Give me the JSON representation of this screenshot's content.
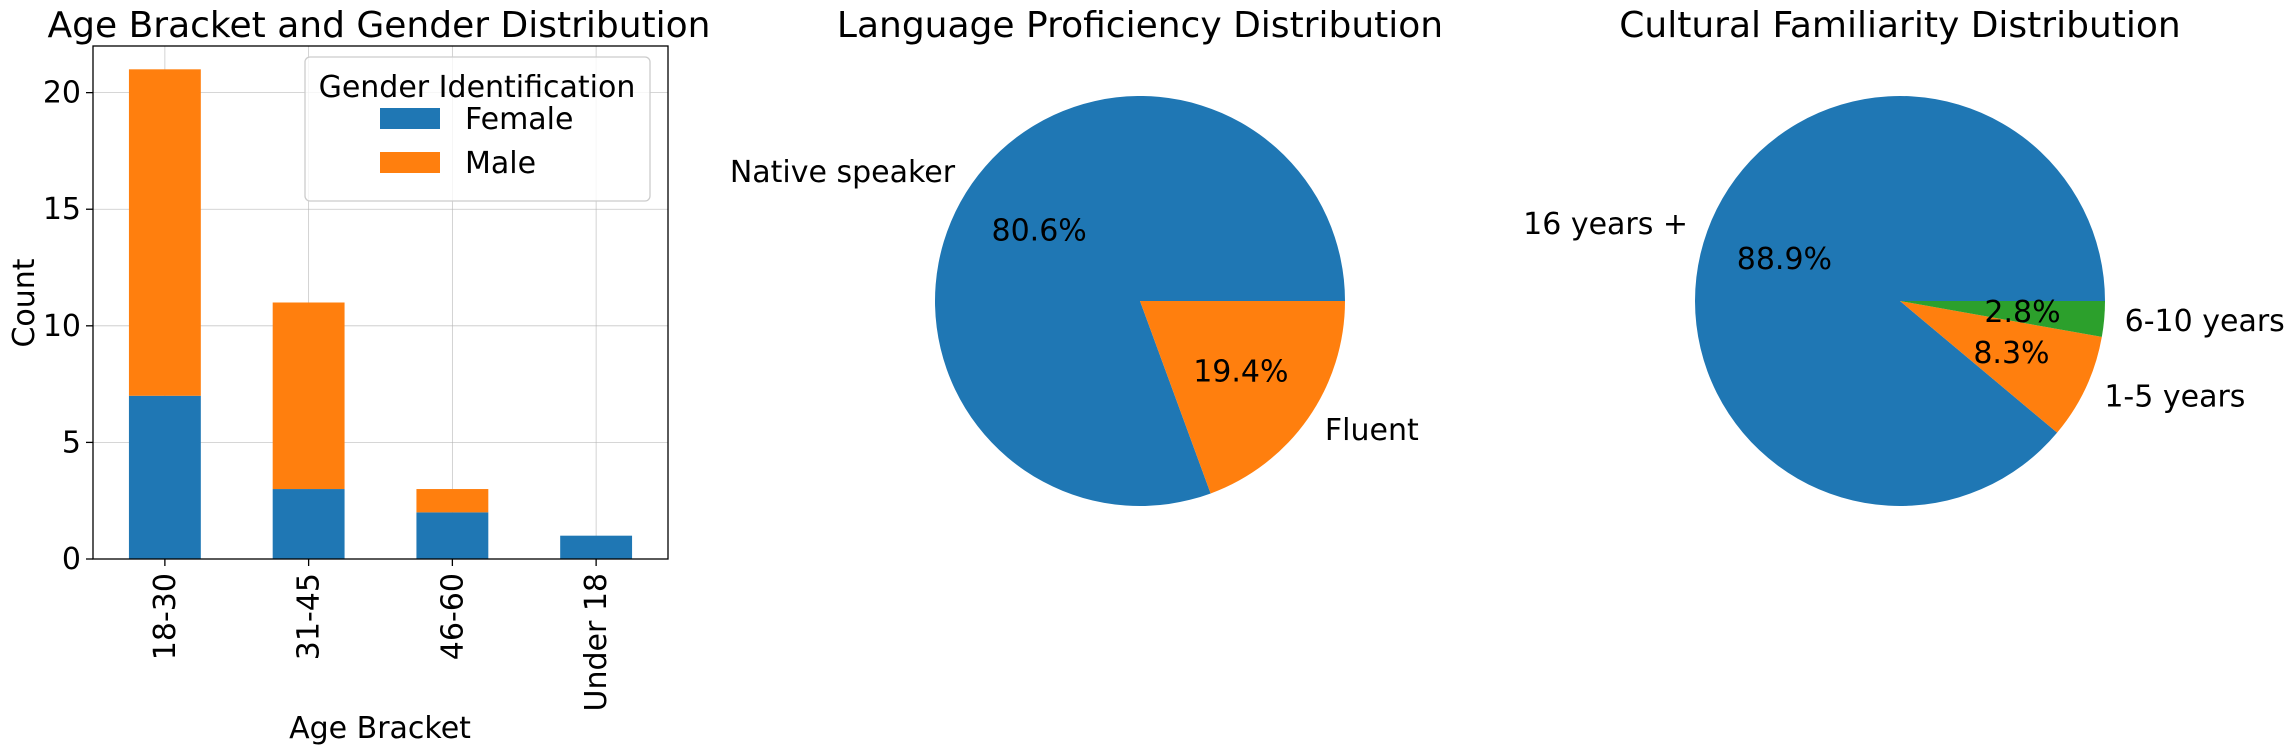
{
  "chart_data": [
    {
      "type": "bar",
      "stacked": true,
      "title": "Age Bracket and Gender Distribution",
      "xlabel": "Age Bracket",
      "ylabel": "Count",
      "categories": [
        "18-30",
        "31-45",
        "46-60",
        "Under 18"
      ],
      "series": [
        {
          "name": "Female",
          "values": [
            7,
            3,
            2,
            1
          ],
          "color": "#1f77b4"
        },
        {
          "name": "Male",
          "values": [
            14,
            8,
            1,
            0
          ],
          "color": "#ff7f0e"
        }
      ],
      "ylim": [
        0,
        22
      ],
      "yticks": [
        0,
        5,
        10,
        15,
        20
      ],
      "grid": true,
      "legend": {
        "title": "Gender Identification",
        "placement": "top-right"
      }
    },
    {
      "type": "pie",
      "title": "Language Proficiency Distribution",
      "slices": [
        {
          "label": "Native speaker",
          "value": 80.6,
          "pct_label": "80.6%",
          "color": "#1f77b4"
        },
        {
          "label": "Fluent",
          "value": 19.4,
          "pct_label": "19.4%",
          "color": "#ff7f0e"
        }
      ]
    },
    {
      "type": "pie",
      "title": "Cultural Familiarity Distribution",
      "slices": [
        {
          "label": "16 years +",
          "value": 88.9,
          "pct_label": "88.9%",
          "color": "#1f77b4"
        },
        {
          "label": "1-5 years",
          "value": 8.3,
          "pct_label": "8.3%",
          "color": "#ff7f0e"
        },
        {
          "label": "6-10 years",
          "value": 2.8,
          "pct_label": "2.8%",
          "color": "#2ca02c"
        }
      ]
    }
  ]
}
